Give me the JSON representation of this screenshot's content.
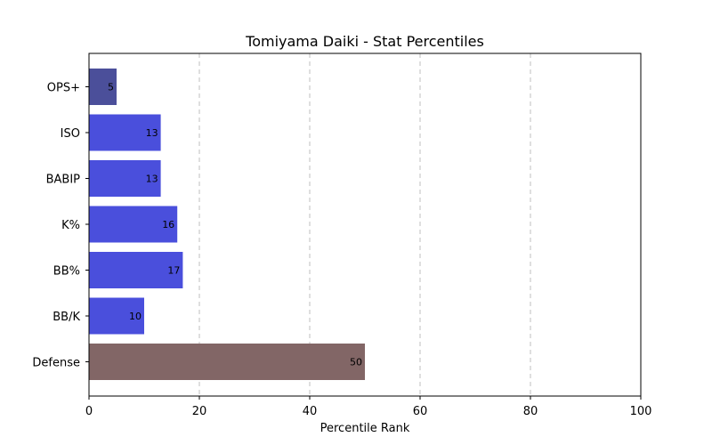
{
  "chart_data": {
    "type": "bar",
    "orientation": "horizontal",
    "title": "Tomiyama Daiki - Stat Percentiles",
    "xlabel": "Percentile Rank",
    "ylabel": "",
    "xlim": [
      0,
      100
    ],
    "xticks": [
      0,
      20,
      40,
      60,
      80,
      100
    ],
    "grid": "x-dashed",
    "categories": [
      "OPS+",
      "ISO",
      "BABIP",
      "K%",
      "BB%",
      "BB/K",
      "Defense"
    ],
    "values": [
      5,
      13,
      13,
      16,
      17,
      10,
      50
    ],
    "colors": [
      "#4b4f9a",
      "#4a4fdc",
      "#4a4fdc",
      "#4a4fdc",
      "#4a4fdc",
      "#4a4fdc",
      "#826666"
    ]
  }
}
